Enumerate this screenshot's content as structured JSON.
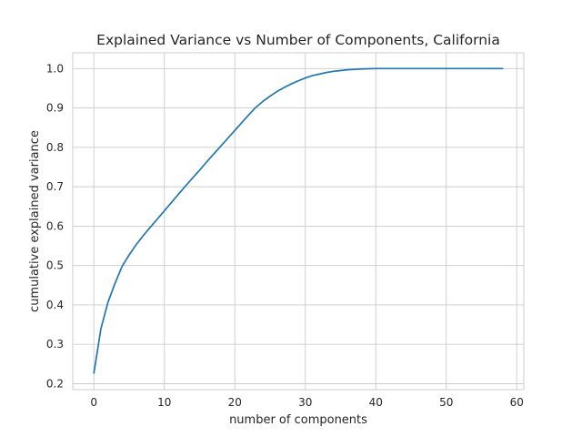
{
  "chart_data": {
    "type": "line",
    "title": "Explained Variance vs Number of Components, California",
    "xlabel": "number of components",
    "ylabel": "cumulative explained variance",
    "xlim": [
      -3,
      61
    ],
    "ylim": [
      0.185,
      1.04
    ],
    "xticks": [
      0,
      10,
      20,
      30,
      40,
      50,
      60
    ],
    "yticks": [
      0.2,
      0.3,
      0.4,
      0.5,
      0.6,
      0.7,
      0.8,
      0.9,
      1.0
    ],
    "xtick_labels": [
      "0",
      "10",
      "20",
      "30",
      "40",
      "50",
      "60"
    ],
    "ytick_labels": [
      "0.2",
      "0.3",
      "0.4",
      "0.5",
      "0.6",
      "0.7",
      "0.8",
      "0.9",
      "1.0"
    ],
    "grid": true,
    "series": [
      {
        "color": "#1f77b4",
        "x": [
          0,
          1,
          2,
          3,
          4,
          5,
          6,
          7,
          8,
          9,
          10,
          11,
          12,
          13,
          14,
          15,
          16,
          17,
          18,
          19,
          20,
          21,
          22,
          23,
          24,
          25,
          26,
          27,
          28,
          29,
          30,
          31,
          32,
          33,
          34,
          35,
          36,
          37,
          38,
          39,
          40,
          41,
          42,
          43,
          44,
          45,
          46,
          47,
          48,
          49,
          50,
          51,
          52,
          53,
          54,
          55,
          56,
          57,
          58
        ],
        "y": [
          0.227,
          0.34,
          0.407,
          0.455,
          0.498,
          0.527,
          0.553,
          0.576,
          0.597,
          0.618,
          0.639,
          0.66,
          0.681,
          0.702,
          0.722,
          0.742,
          0.763,
          0.783,
          0.803,
          0.823,
          0.843,
          0.863,
          0.883,
          0.902,
          0.917,
          0.93,
          0.942,
          0.952,
          0.961,
          0.969,
          0.976,
          0.982,
          0.986,
          0.99,
          0.993,
          0.995,
          0.997,
          0.998,
          0.999,
          0.9995,
          1.0,
          1.0,
          1.0,
          1.0,
          1.0,
          1.0,
          1.0,
          1.0,
          1.0,
          1.0,
          1.0,
          1.0,
          1.0,
          1.0,
          1.0,
          1.0,
          1.0,
          1.0,
          1.0
        ]
      }
    ]
  }
}
